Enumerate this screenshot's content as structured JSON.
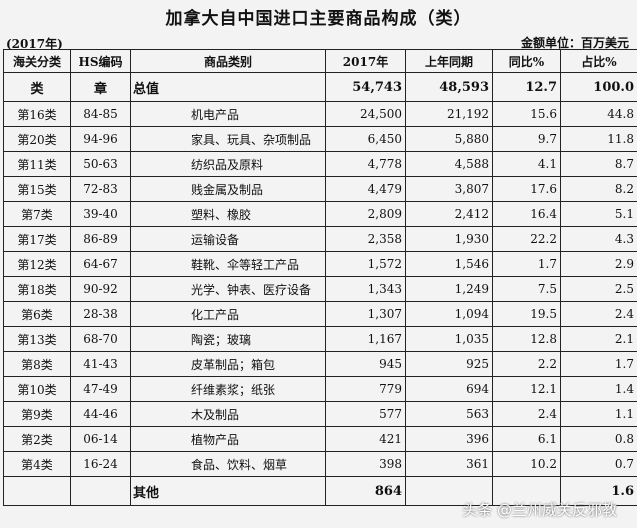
{
  "title": "加拿大自中国进口主要商品构成（类）",
  "year_note": "(2017年)",
  "unit_note": "金额单位：百万美元",
  "headers": [
    "海关分类",
    "HS编码",
    "商品类别",
    "2017年",
    "上年同期",
    "同比%",
    "占比%"
  ],
  "total": {
    "cls": "类",
    "hs": "章",
    "name": "总值",
    "y2017": "54,743",
    "prev": "48,593",
    "yoy": "12.7",
    "share": "100.0"
  },
  "rows": [
    {
      "cls": "第16类",
      "hs": "84-85",
      "name": "机电产品",
      "y2017": "24,500",
      "prev": "21,192",
      "yoy": "15.6",
      "share": "44.8"
    },
    {
      "cls": "第20类",
      "hs": "94-96",
      "name": "家具、玩具、杂项制品",
      "y2017": "6,450",
      "prev": "5,880",
      "yoy": "9.7",
      "share": "11.8"
    },
    {
      "cls": "第11类",
      "hs": "50-63",
      "name": "纺织品及原料",
      "y2017": "4,778",
      "prev": "4,588",
      "yoy": "4.1",
      "share": "8.7"
    },
    {
      "cls": "第15类",
      "hs": "72-83",
      "name": "贱金属及制品",
      "y2017": "4,479",
      "prev": "3,807",
      "yoy": "17.6",
      "share": "8.2"
    },
    {
      "cls": "第7类",
      "hs": "39-40",
      "name": "塑料、橡胶",
      "y2017": "2,809",
      "prev": "2,412",
      "yoy": "16.4",
      "share": "5.1"
    },
    {
      "cls": "第17类",
      "hs": "86-89",
      "name": "运输设备",
      "y2017": "2,358",
      "prev": "1,930",
      "yoy": "22.2",
      "share": "4.3"
    },
    {
      "cls": "第12类",
      "hs": "64-67",
      "name": "鞋靴、伞等轻工产品",
      "y2017": "1,572",
      "prev": "1,546",
      "yoy": "1.7",
      "share": "2.9"
    },
    {
      "cls": "第18类",
      "hs": "90-92",
      "name": "光学、钟表、医疗设备",
      "y2017": "1,343",
      "prev": "1,249",
      "yoy": "7.5",
      "share": "2.5"
    },
    {
      "cls": "第6类",
      "hs": "28-38",
      "name": "化工产品",
      "y2017": "1,307",
      "prev": "1,094",
      "yoy": "19.5",
      "share": "2.4"
    },
    {
      "cls": "第13类",
      "hs": "68-70",
      "name": "陶瓷；玻璃",
      "y2017": "1,167",
      "prev": "1,035",
      "yoy": "12.8",
      "share": "2.1"
    },
    {
      "cls": "第8类",
      "hs": "41-43",
      "name": "皮革制品；箱包",
      "y2017": "945",
      "prev": "925",
      "yoy": "2.2",
      "share": "1.7"
    },
    {
      "cls": "第10类",
      "hs": "47-49",
      "name": "纤维素浆；纸张",
      "y2017": "779",
      "prev": "694",
      "yoy": "12.1",
      "share": "1.4"
    },
    {
      "cls": "第9类",
      "hs": "44-46",
      "name": "木及制品",
      "y2017": "577",
      "prev": "563",
      "yoy": "2.4",
      "share": "1.1"
    },
    {
      "cls": "第2类",
      "hs": "06-14",
      "name": "植物产品",
      "y2017": "421",
      "prev": "396",
      "yoy": "6.1",
      "share": "0.8"
    },
    {
      "cls": "第4类",
      "hs": "16-24",
      "name": "食品、饮料、烟草",
      "y2017": "398",
      "prev": "361",
      "yoy": "10.2",
      "share": "0.7"
    }
  ],
  "other": {
    "name": "其他",
    "y2017": "864",
    "share": "1.6"
  },
  "watermark": "头条 @兰州威关反邪教"
}
